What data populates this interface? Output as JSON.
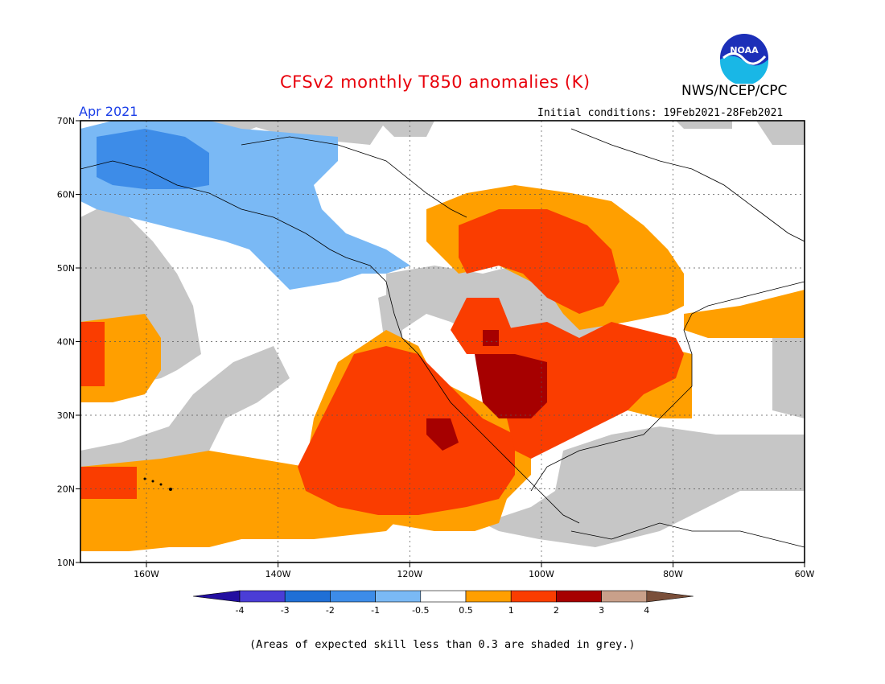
{
  "title": "CFSv2 monthly T850 anomalies (K)",
  "agency": "NWS/NCEP/CPC",
  "logo_text": "NOAA",
  "month_label": "Apr 2021",
  "init_conditions": "Initial conditions: 19Feb2021-28Feb2021",
  "footnote": "(Areas of expected skill less than 0.3 are shaded in grey.)",
  "map": {
    "lon_range": [
      -170,
      -60
    ],
    "lat_range": [
      10,
      70
    ],
    "lat_labels": [
      "70N",
      "60N",
      "50N",
      "40N",
      "30N",
      "20N",
      "10N"
    ],
    "lon_labels": [
      "160W",
      "140W",
      "120W",
      "100W",
      "80W",
      "60W"
    ],
    "regions": [
      {
        "name": "alaska-gulf-cool",
        "category": "-1 to -0.5",
        "color": "#7ab9f5"
      },
      {
        "name": "bering-cool",
        "category": "-2 to -1",
        "color": "#3d8ce8"
      },
      {
        "name": "sw-us-warm",
        "category": "2 to 3",
        "color": "#a60000"
      },
      {
        "name": "east-pacific-warm",
        "category": "1 to 2",
        "color": "#fa3d00"
      },
      {
        "name": "low-skill",
        "category": "grey",
        "color": "#c6c6c6"
      }
    ]
  },
  "colorbar": {
    "labels": [
      "-4",
      "-3",
      "-2",
      "-1",
      "-0.5",
      "0.5",
      "1",
      "2",
      "3",
      "4"
    ],
    "colors": [
      "#230fa0",
      "#4a3dd6",
      "#1f6fd6",
      "#3d8ce8",
      "#7ab9f5",
      "#ffffff",
      "#ff9f00",
      "#fa3d00",
      "#a60000",
      "#c9a08a",
      "#7a4f3a"
    ]
  }
}
